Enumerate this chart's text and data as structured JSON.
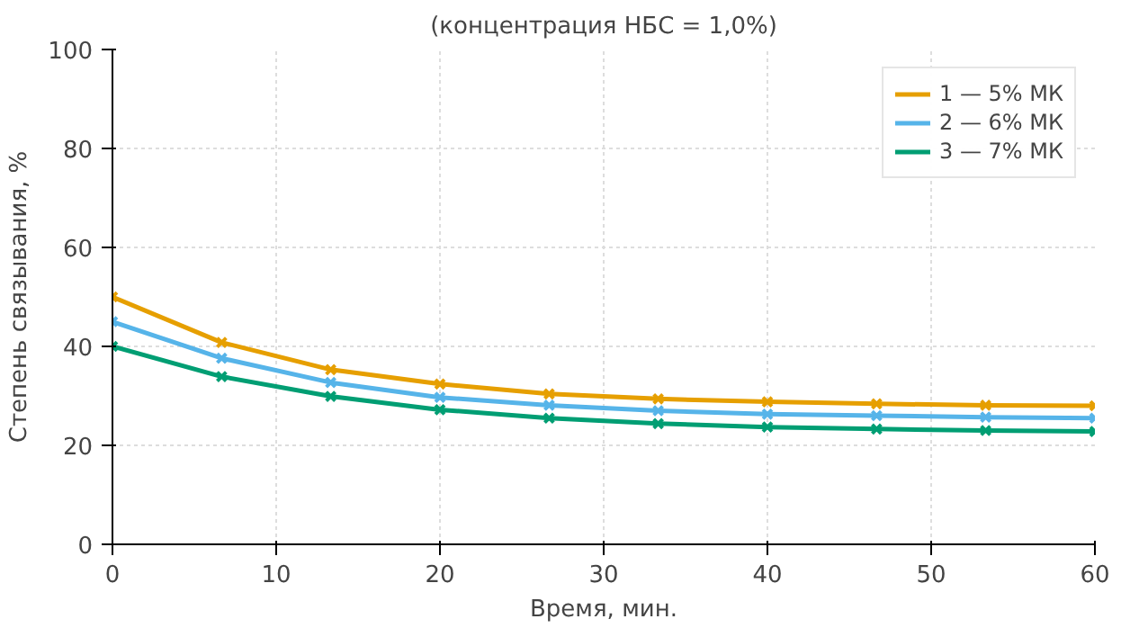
{
  "chart_data": {
    "type": "line",
    "title": "(концентрация НБС = 1,0%)",
    "xlabel": "Время, мин.",
    "ylabel": "Степень связывания, %",
    "x": [
      0,
      6.67,
      13.33,
      20,
      26.67,
      33.33,
      40,
      46.67,
      53.33,
      60
    ],
    "series": [
      {
        "name": "1 — 5% МК",
        "color": "#e69f00",
        "values": [
          50,
          40.8,
          35.3,
          32.4,
          30.4,
          29.4,
          28.8,
          28.4,
          28.1,
          28.0
        ]
      },
      {
        "name": "2 — 6% МК",
        "color": "#56b4e9",
        "values": [
          45,
          37.6,
          32.7,
          29.7,
          28.1,
          27.0,
          26.3,
          26.0,
          25.7,
          25.5
        ]
      },
      {
        "name": "3 — 7% МК",
        "color": "#009e73",
        "values": [
          40,
          33.9,
          29.9,
          27.2,
          25.5,
          24.4,
          23.7,
          23.3,
          23.0,
          22.8
        ]
      }
    ],
    "xlim": [
      0,
      60
    ],
    "ylim": [
      0,
      100
    ],
    "xticks": [
      0,
      10,
      20,
      30,
      40,
      50,
      60
    ],
    "yticks": [
      0,
      20,
      40,
      60,
      80,
      100
    ],
    "grid": true,
    "legend": "top right",
    "marker": "cross",
    "line_style": "solid"
  }
}
